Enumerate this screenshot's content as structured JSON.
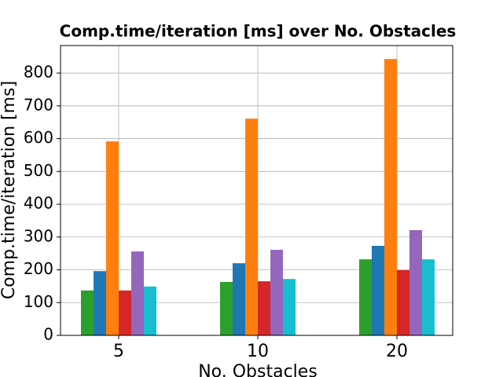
{
  "chart_data": {
    "type": "bar",
    "title": "Comp.time/iteration [ms] over No. Obstacles",
    "x_label": "No. Obstacles",
    "y_label": "Comp.time/iteration [ms]",
    "categories": [
      "5",
      "10",
      "20"
    ],
    "series": [
      {
        "color": "#2ca02c",
        "values": [
          137,
          163,
          232
        ]
      },
      {
        "color": "#1f77b4",
        "values": [
          196,
          220,
          273
        ]
      },
      {
        "color": "#ff7f0e",
        "values": [
          592,
          661,
          843
        ]
      },
      {
        "color": "#d62728",
        "values": [
          137,
          165,
          199
        ]
      },
      {
        "color": "#9467bd",
        "values": [
          256,
          261,
          321
        ]
      },
      {
        "color": "#17becf",
        "values": [
          149,
          172,
          232
        ]
      }
    ],
    "ylim": [
      0,
      884
    ],
    "yticks": [
      0,
      100,
      200,
      300,
      400,
      500,
      600,
      700,
      800
    ],
    "grid": true
  }
}
